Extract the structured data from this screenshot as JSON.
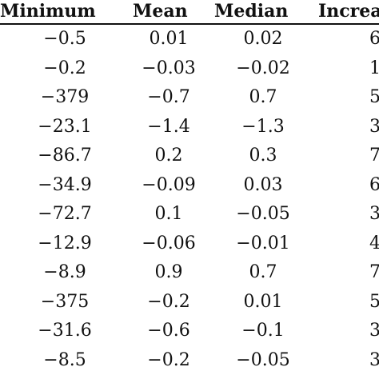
{
  "table": {
    "headers": {
      "minimum": "Minimum",
      "mean": "Mean",
      "median": "Median",
      "increase": "Increa"
    },
    "rows": [
      {
        "minimum": "−0.5",
        "mean": "0.01",
        "median": "0.02",
        "increase": "6"
      },
      {
        "minimum": "−0.2",
        "mean": "−0.03",
        "median": "−0.02",
        "increase": "1"
      },
      {
        "minimum": "−379",
        "mean": "−0.7",
        "median": "0.7",
        "increase": "5"
      },
      {
        "minimum": "−23.1",
        "mean": "−1.4",
        "median": "−1.3",
        "increase": "3"
      },
      {
        "minimum": "−86.7",
        "mean": "0.2",
        "median": "0.3",
        "increase": "7"
      },
      {
        "minimum": "−34.9",
        "mean": "−0.09",
        "median": "0.03",
        "increase": "6"
      },
      {
        "minimum": "−72.7",
        "mean": "0.1",
        "median": "−0.05",
        "increase": "3"
      },
      {
        "minimum": "−12.9",
        "mean": "−0.06",
        "median": "−0.01",
        "increase": "4"
      },
      {
        "minimum": "−8.9",
        "mean": "0.9",
        "median": "0.7",
        "increase": "7"
      },
      {
        "minimum": "−375",
        "mean": "−0.2",
        "median": "0.01",
        "increase": "5"
      },
      {
        "minimum": "−31.6",
        "mean": "−0.6",
        "median": "−0.1",
        "increase": "3"
      },
      {
        "minimum": "−8.5",
        "mean": "−0.2",
        "median": "−0.05",
        "increase": "3"
      }
    ]
  }
}
